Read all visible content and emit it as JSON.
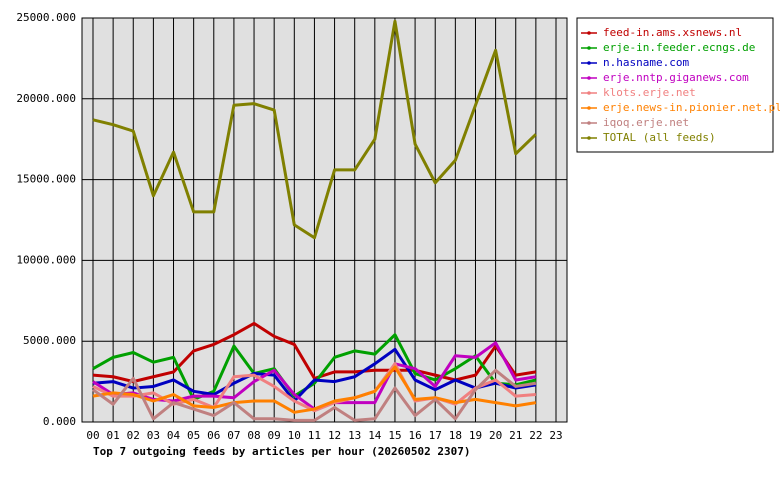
{
  "chart_data": {
    "type": "line",
    "title": "Top 7 outgoing feeds by articles per hour (20260502 2307)",
    "categories": [
      "00",
      "01",
      "02",
      "03",
      "04",
      "05",
      "06",
      "07",
      "08",
      "09",
      "10",
      "11",
      "12",
      "13",
      "14",
      "15",
      "16",
      "17",
      "18",
      "19",
      "20",
      "21",
      "22",
      "23"
    ],
    "ylim": [
      0,
      25000
    ],
    "yticks": [
      {
        "value": 0,
        "label": "0.000"
      },
      {
        "value": 5000,
        "label": "5000.000"
      },
      {
        "value": 10000,
        "label": "10000.000"
      },
      {
        "value": 15000,
        "label": "15000.000"
      },
      {
        "value": 20000,
        "label": "20000.000"
      },
      {
        "value": 25000,
        "label": "25000.000"
      }
    ],
    "grid": true,
    "legend": "right",
    "background": "#e0e0e0",
    "series": [
      {
        "name": "feed-in.ams.xsnews.nl",
        "color": "#c00000",
        "values": [
          2900,
          2800,
          2500,
          2800,
          3100,
          4400,
          4800,
          5400,
          6100,
          5300,
          4800,
          2700,
          3100,
          3100,
          3200,
          3200,
          3200,
          2900,
          2600,
          2900,
          4700,
          2900,
          3100,
          null
        ]
      },
      {
        "name": "erje-in.feeder.ecngs.de",
        "color": "#00a000",
        "values": [
          3300,
          4000,
          4300,
          3700,
          4000,
          1400,
          1900,
          4700,
          3000,
          3300,
          1600,
          2400,
          4000,
          4400,
          4200,
          5400,
          3000,
          2600,
          3300,
          4100,
          2400,
          2300,
          2600,
          null
        ]
      },
      {
        "name": "n.hasname.com",
        "color": "#0000c0",
        "values": [
          2400,
          2500,
          2100,
          2200,
          2600,
          1900,
          1700,
          2400,
          3000,
          2900,
          1300,
          2600,
          2500,
          2800,
          3600,
          4500,
          2600,
          2000,
          2600,
          2100,
          2400,
          2100,
          2300,
          null
        ]
      },
      {
        "name": "erje.nntp.giganews.com",
        "color": "#c000c0",
        "values": [
          2500,
          1700,
          1800,
          1400,
          1300,
          1600,
          1600,
          1500,
          2500,
          3200,
          1700,
          800,
          1200,
          1200,
          1200,
          3600,
          3300,
          2200,
          4100,
          4000,
          4900,
          2600,
          2800,
          null
        ]
      },
      {
        "name": "klots.erje.net",
        "color": "#f08080",
        "values": [
          2200,
          1600,
          1600,
          1800,
          1100,
          1400,
          900,
          2800,
          2900,
          2200,
          1300,
          700,
          1200,
          1500,
          1900,
          3600,
          1300,
          1500,
          1100,
          2100,
          2600,
          1600,
          1700,
          null
        ]
      },
      {
        "name": "erje.news-in.pionier.net.pl",
        "color": "#ff8000",
        "values": [
          1600,
          1800,
          1700,
          1300,
          1700,
          1000,
          900,
          1200,
          1300,
          1300,
          600,
          800,
          1300,
          1500,
          1900,
          3400,
          1400,
          1500,
          1200,
          1400,
          1200,
          1000,
          1200,
          null
        ]
      },
      {
        "name": "iqoq.erje.net",
        "color": "#c08080",
        "values": [
          2000,
          1100,
          2700,
          200,
          1200,
          800,
          400,
          1200,
          200,
          200,
          100,
          100,
          900,
          100,
          200,
          2100,
          400,
          1400,
          200,
          2000,
          3200,
          2200,
          2400,
          null
        ]
      },
      {
        "name": "TOTAL (all feeds)",
        "color": "#808000",
        "values": [
          18700,
          18400,
          18000,
          14000,
          16700,
          13000,
          13000,
          19600,
          19700,
          19300,
          12200,
          11400,
          15600,
          15600,
          17500,
          24800,
          17200,
          14800,
          16200,
          19600,
          23000,
          16600,
          17800,
          null
        ]
      }
    ]
  }
}
